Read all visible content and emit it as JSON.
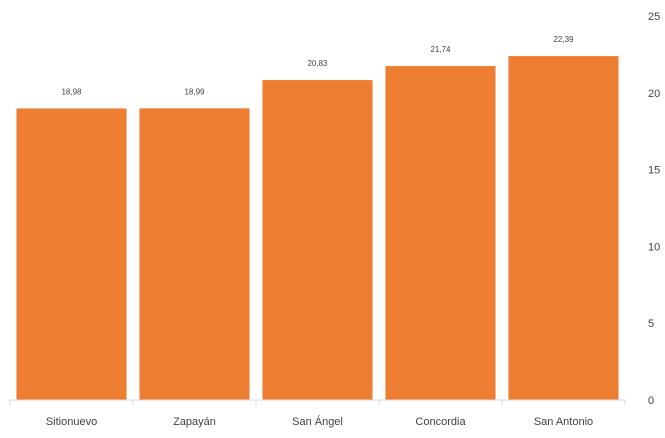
{
  "chart_data": {
    "type": "bar",
    "categories": [
      "Sitionuevo",
      "Zapayán",
      "San Ángel",
      "Concordia",
      "San Antonio"
    ],
    "values": [
      18.98,
      18.99,
      20.83,
      21.74,
      22.39
    ],
    "data_labels": [
      "18,98",
      "18,99",
      "20,83",
      "21,74",
      "22,39"
    ],
    "ylim": [
      0,
      25
    ],
    "y_ticks": [
      0,
      5,
      10,
      15,
      20,
      25
    ],
    "y_axis_side": "right",
    "grid": false,
    "legend": "none",
    "colors": {
      "bar": "#ED7D31",
      "axis": "#D9D9D9",
      "text": "#404040"
    }
  }
}
